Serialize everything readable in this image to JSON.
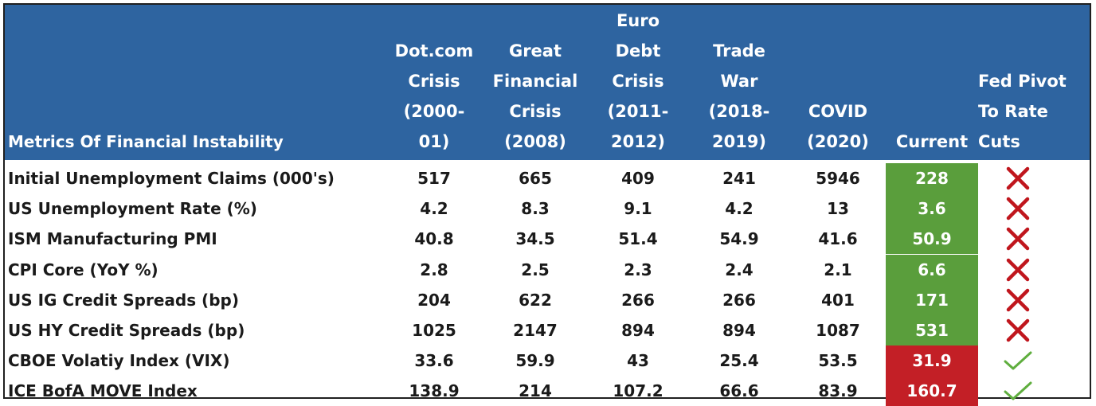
{
  "table": {
    "header": {
      "metric": "Metrics Of Financial Instability",
      "columns": [
        [
          "Dot.com",
          "Crisis",
          "(2000-",
          "01)"
        ],
        [
          "Great",
          "Financial",
          "Crisis",
          "(2008)"
        ],
        [
          "Euro",
          "Debt",
          "Crisis",
          "(2011-",
          "2012)"
        ],
        [
          "Trade",
          "War",
          "(2018-",
          "2019)"
        ],
        [
          "COVID",
          "(2020)"
        ],
        [
          "Current"
        ],
        [
          "Fed Pivot",
          "To Rate",
          "Cuts"
        ]
      ]
    },
    "rows": [
      {
        "metric": "Initial Unemployment Claims (000's)",
        "values": [
          "517",
          "665",
          "409",
          "241",
          "5946"
        ],
        "current": "228",
        "current_status": "green",
        "pivot": "x-icon"
      },
      {
        "metric": "US Unemployment Rate (%)",
        "values": [
          "4.2",
          "8.3",
          "9.1",
          "4.2",
          "13"
        ],
        "current": "3.6",
        "current_status": "green",
        "pivot": "x-icon"
      },
      {
        "metric": "ISM Manufacturing PMI",
        "values": [
          "40.8",
          "34.5",
          "51.4",
          "54.9",
          "41.6"
        ],
        "current": "50.9",
        "current_status": "green",
        "pivot": "x-icon"
      },
      {
        "metric": "CPI Core (YoY %)",
        "values": [
          "2.8",
          "2.5",
          "2.3",
          "2.4",
          "2.1"
        ],
        "current": "6.6",
        "current_status": "green",
        "pivot": "x-icon"
      },
      {
        "metric": "US IG Credit Spreads (bp)",
        "values": [
          "204",
          "622",
          "266",
          "266",
          "401"
        ],
        "current": "171",
        "current_status": "green",
        "pivot": "x-icon"
      },
      {
        "metric": "US HY Credit Spreads (bp)",
        "values": [
          "1025",
          "2147",
          "894",
          "894",
          "1087"
        ],
        "current": "531",
        "current_status": "green",
        "pivot": "x-icon"
      },
      {
        "metric": "CBOE Volatiy Index (VIX)",
        "values": [
          "33.6",
          "59.9",
          "43",
          "25.4",
          "53.5"
        ],
        "current": "31.9",
        "current_status": "red",
        "pivot": "check-icon"
      },
      {
        "metric": "ICE BofA MOVE Index",
        "values": [
          "138.9",
          "214",
          "107.2",
          "66.6",
          "83.9"
        ],
        "current": "160.7",
        "current_status": "red",
        "pivot": "check-icon"
      }
    ],
    "colors": {
      "header_bg": "#2e64a0",
      "green": "#5a9e3c",
      "red": "#c31f26",
      "x_mark": "#c0161d",
      "check_mark": "#5fae3e"
    }
  }
}
